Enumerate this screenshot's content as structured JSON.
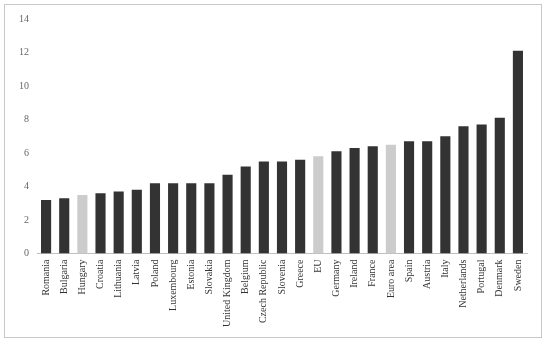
{
  "chart_data": {
    "type": "bar",
    "categories": [
      "Romania",
      "Bulgaria",
      "Hungary",
      "Croatia",
      "Lithuania",
      "Latvia",
      "Poland",
      "Luxembourg",
      "Estonia",
      "Slovakia",
      "United Kingdom",
      "Belgium",
      "Czech Republic",
      "Slovenia",
      "Greece",
      "EU",
      "Germany",
      "Ireland",
      "France",
      "Euro area",
      "Spain",
      "Austria",
      "Italy",
      "Netherlands",
      "Portugal",
      "Denmark",
      "Sweden"
    ],
    "values": [
      3.2,
      3.3,
      3.5,
      3.6,
      3.7,
      3.8,
      4.2,
      4.2,
      4.2,
      4.2,
      4.7,
      5.2,
      5.5,
      5.5,
      5.6,
      5.8,
      6.1,
      6.3,
      6.4,
      6.5,
      6.7,
      6.7,
      7.0,
      7.6,
      7.7,
      8.1,
      12.1
    ],
    "colors": [
      "#333333",
      "#333333",
      "#cccccc",
      "#333333",
      "#333333",
      "#333333",
      "#333333",
      "#333333",
      "#333333",
      "#333333",
      "#333333",
      "#333333",
      "#333333",
      "#333333",
      "#333333",
      "#cccccc",
      "#333333",
      "#333333",
      "#333333",
      "#cccccc",
      "#333333",
      "#333333",
      "#333333",
      "#333333",
      "#333333",
      "#333333",
      "#333333"
    ],
    "ylim": [
      0,
      14
    ],
    "yticks": [
      0,
      2,
      4,
      6,
      8,
      10,
      12,
      14
    ],
    "grid": false
  }
}
